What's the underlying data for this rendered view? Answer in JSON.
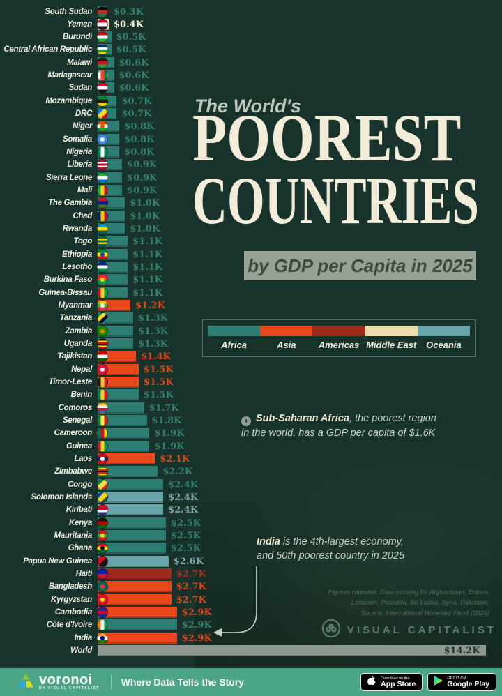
{
  "title": {
    "kicker": "The World's",
    "line1": "POOREST",
    "line2": "COUNTRIES",
    "subtitle": "by GDP per Capita in 2025"
  },
  "note": {
    "bold": "Sub-Saharan Africa",
    "rest": ", the poorest region\nin the world, has a GDP per capita of $1.6K"
  },
  "annotation": {
    "bold": "India",
    "rest": " is the 4th-largest economy,\nand 50th poorest country in 2025"
  },
  "fineprint": [
    "Figures rounded. Data missing for Afghanistan, Eritrea,",
    "Lebanon, Pakistan, Sri Lanka, Syria, Palestine.",
    "Source: International Monetary Fund (2025)"
  ],
  "brand": {
    "name": "VISUAL CAPITALIST"
  },
  "footer": {
    "logo": "voronoi",
    "by": "BY VISUAL CAPITALIST",
    "tagline": "Where Data Tells the Story",
    "badges": [
      {
        "top": "Download on the",
        "bottom": "App Store"
      },
      {
        "top": "GET IT ON",
        "bottom": "Google Play"
      }
    ]
  },
  "icons": {
    "note": "info-icon",
    "brand": "binoculars-icon",
    "badge_1": "apple-icon",
    "badge_2": "google-play-icon"
  },
  "colors": {
    "background": "#17332b",
    "footer_accent": "#4ba585",
    "title_cream": "#f2ecd9",
    "subtitle_bg": "#97a194",
    "regions": {
      "africa": "#2e7d72",
      "asia": "#e8481c",
      "americas": "#9e2a1e",
      "middle_east": "#ecdcaa",
      "oceania": "#68a6ac",
      "world": "#8e988e"
    },
    "value_text": {
      "africa": "#35806f",
      "asia": "#dd4518",
      "americas": "#a72f20",
      "middle_east": "#f3ead0",
      "oceania": "#7fabaf",
      "world": "#243831"
    }
  },
  "chart_data": {
    "type": "bar",
    "orientation": "horizontal",
    "title": "The World's Poorest Countries",
    "subtitle": "by GDP per Capita in 2025",
    "unit": "GDP per capita, USD thousands",
    "source": "International Monetary Fund (2025)",
    "xlim": [
      0,
      14.2
    ],
    "legend": [
      {
        "label": "Africa",
        "region": "africa"
      },
      {
        "label": "Asia",
        "region": "asia"
      },
      {
        "label": "Americas",
        "region": "americas"
      },
      {
        "label": "Middle East",
        "region": "middle_east"
      },
      {
        "label": "Oceania",
        "region": "oceania"
      }
    ],
    "series": [
      {
        "country": "South Sudan",
        "value": 0.3,
        "label": "$0.3K",
        "region": "africa",
        "flag": {
          "dir": "h",
          "colors": [
            "#0a0a0a",
            "#cd2027",
            "#17813a"
          ]
        }
      },
      {
        "country": "Yemen",
        "value": 0.4,
        "label": "$0.4K",
        "region": "middle_east",
        "flag": {
          "dir": "h",
          "colors": [
            "#ce1126",
            "#f5f5f5",
            "#1a1a1a"
          ]
        }
      },
      {
        "country": "Burundi",
        "value": 0.5,
        "label": "$0.5K",
        "region": "africa",
        "flag": {
          "dir": "h",
          "colors": [
            "#ce1126",
            "#f5f5f5",
            "#1eb53a"
          ]
        }
      },
      {
        "country": "Central African Republic",
        "value": 0.5,
        "label": "$0.5K",
        "region": "africa",
        "flag": {
          "dir": "h",
          "colors": [
            "#003082",
            "#f5f5f5",
            "#289728",
            "#ffce00"
          ]
        }
      },
      {
        "country": "Malawi",
        "value": 0.6,
        "label": "$0.6K",
        "region": "africa",
        "flag": {
          "dir": "h",
          "colors": [
            "#1a1a1a",
            "#ce1126",
            "#339e35"
          ]
        }
      },
      {
        "country": "Madagascar",
        "value": 0.6,
        "label": "$0.6K",
        "region": "africa",
        "flag": {
          "dir": "v",
          "colors": [
            "#f5f5f5",
            "#fc3d32",
            "#007e3a"
          ]
        }
      },
      {
        "country": "Sudan",
        "value": 0.6,
        "label": "$0.6K",
        "region": "africa",
        "flag": {
          "dir": "h",
          "colors": [
            "#d21034",
            "#f5f5f5",
            "#1a1a1a"
          ]
        }
      },
      {
        "country": "Mozambique",
        "value": 0.7,
        "label": "$0.7K",
        "region": "africa",
        "flag": {
          "dir": "h",
          "colors": [
            "#009739",
            "#1a1a1a",
            "#ffd100"
          ]
        }
      },
      {
        "country": "DRC",
        "value": 0.7,
        "label": "$0.7K",
        "region": "africa",
        "flag": {
          "dir": "d",
          "colors": [
            "#007fff",
            "#f7d618",
            "#ce1021"
          ]
        }
      },
      {
        "country": "Niger",
        "value": 0.8,
        "label": "$0.8K",
        "region": "africa",
        "flag": {
          "dir": "h",
          "colors": [
            "#e05206",
            "#f5f5f5",
            "#0db02b"
          ],
          "dot": "#e05206"
        }
      },
      {
        "country": "Somalia",
        "value": 0.8,
        "label": "$0.8K",
        "region": "africa",
        "flag": {
          "dir": "s",
          "colors": [
            "#4189dd"
          ],
          "dot": "#ffffff"
        }
      },
      {
        "country": "Nigeria",
        "value": 0.8,
        "label": "$0.8K",
        "region": "africa",
        "flag": {
          "dir": "v",
          "colors": [
            "#008751",
            "#f5f5f5",
            "#008751"
          ]
        }
      },
      {
        "country": "Liberia",
        "value": 0.9,
        "label": "$0.9K",
        "region": "africa",
        "flag": {
          "dir": "h",
          "colors": [
            "#bf0a30",
            "#f5f5f5",
            "#bf0a30",
            "#f5f5f5",
            "#bf0a30"
          ]
        }
      },
      {
        "country": "Sierra Leone",
        "value": 0.9,
        "label": "$0.9K",
        "region": "africa",
        "flag": {
          "dir": "h",
          "colors": [
            "#1eb53a",
            "#f5f5f5",
            "#0072c6"
          ]
        }
      },
      {
        "country": "Mali",
        "value": 0.9,
        "label": "$0.9K",
        "region": "africa",
        "flag": {
          "dir": "v",
          "colors": [
            "#14b53a",
            "#fcd116",
            "#ce1126"
          ]
        }
      },
      {
        "country": "The Gambia",
        "value": 1.0,
        "label": "$1.0K",
        "region": "africa",
        "flag": {
          "dir": "h",
          "colors": [
            "#ce1126",
            "#0c1c8c",
            "#3a7728"
          ]
        }
      },
      {
        "country": "Chad",
        "value": 1.0,
        "label": "$1.0K",
        "region": "africa",
        "flag": {
          "dir": "v",
          "colors": [
            "#002664",
            "#fecb00",
            "#c60c30"
          ]
        }
      },
      {
        "country": "Rwanda",
        "value": 1.0,
        "label": "$1.0K",
        "region": "africa",
        "flag": {
          "dir": "h",
          "colors": [
            "#00a1de",
            "#fad201",
            "#20603d"
          ]
        }
      },
      {
        "country": "Togo",
        "value": 1.1,
        "label": "$1.1K",
        "region": "africa",
        "flag": {
          "dir": "h",
          "colors": [
            "#006a4e",
            "#ffce00",
            "#006a4e",
            "#ffce00",
            "#006a4e"
          ]
        }
      },
      {
        "country": "Ethiopia",
        "value": 1.1,
        "label": "$1.1K",
        "region": "africa",
        "flag": {
          "dir": "h",
          "colors": [
            "#078930",
            "#fcdd09",
            "#da121a"
          ],
          "dot": "#0f47af"
        }
      },
      {
        "country": "Lesotho",
        "value": 1.1,
        "label": "$1.1K",
        "region": "africa",
        "flag": {
          "dir": "h",
          "colors": [
            "#00209f",
            "#f5f5f5",
            "#009543"
          ]
        }
      },
      {
        "country": "Burkina Faso",
        "value": 1.1,
        "label": "$1.1K",
        "region": "africa",
        "flag": {
          "dir": "h",
          "colors": [
            "#ef2b2d",
            "#009e49"
          ],
          "dot": "#fcd116"
        }
      },
      {
        "country": "Guinea-Bissau",
        "value": 1.1,
        "label": "$1.1K",
        "region": "africa",
        "flag": {
          "dir": "v",
          "colors": [
            "#ce1126",
            "#fcd116",
            "#009e49"
          ]
        }
      },
      {
        "country": "Myanmar",
        "value": 1.2,
        "label": "$1.2K",
        "region": "asia",
        "flag": {
          "dir": "h",
          "colors": [
            "#fecb00",
            "#34b233",
            "#ea2839"
          ],
          "dot": "#ffffff"
        }
      },
      {
        "country": "Tanzania",
        "value": 1.3,
        "label": "$1.3K",
        "region": "africa",
        "flag": {
          "dir": "d",
          "colors": [
            "#1eb53a",
            "#fcd116",
            "#141414",
            "#00a3dd"
          ]
        }
      },
      {
        "country": "Zambia",
        "value": 1.3,
        "label": "$1.3K",
        "region": "africa",
        "flag": {
          "dir": "s",
          "colors": [
            "#198a00"
          ],
          "dot": "#ef7d00"
        }
      },
      {
        "country": "Uganda",
        "value": 1.3,
        "label": "$1.3K",
        "region": "africa",
        "flag": {
          "dir": "h",
          "colors": [
            "#1a1a1a",
            "#fcdc04",
            "#d90000",
            "#1a1a1a",
            "#fcdc04",
            "#d90000"
          ]
        }
      },
      {
        "country": "Tajikistan",
        "value": 1.4,
        "label": "$1.4K",
        "region": "asia",
        "flag": {
          "dir": "h",
          "colors": [
            "#cc0000",
            "#f5f5f5",
            "#006600"
          ]
        }
      },
      {
        "country": "Nepal",
        "value": 1.5,
        "label": "$1.5K",
        "region": "asia",
        "flag": {
          "dir": "s",
          "colors": [
            "#dc143c"
          ],
          "dot": "#f5f5f5"
        }
      },
      {
        "country": "Timor-Leste",
        "value": 1.5,
        "label": "$1.5K",
        "region": "asia",
        "flag": {
          "dir": "v",
          "colors": [
            "#1a1a1a",
            "#ffc726",
            "#dc241f"
          ]
        }
      },
      {
        "country": "Benin",
        "value": 1.5,
        "label": "$1.5K",
        "region": "africa",
        "flag": {
          "dir": "v",
          "colors": [
            "#008751",
            "#fcd116",
            "#e8112d"
          ]
        }
      },
      {
        "country": "Comoros",
        "value": 1.7,
        "label": "$1.7K",
        "region": "africa",
        "flag": {
          "dir": "h",
          "colors": [
            "#ffc61e",
            "#f5f5f5",
            "#ce1126",
            "#3a75c4"
          ]
        }
      },
      {
        "country": "Senegal",
        "value": 1.8,
        "label": "$1.8K",
        "region": "africa",
        "flag": {
          "dir": "v",
          "colors": [
            "#00853f",
            "#fdef42",
            "#e31b23"
          ]
        }
      },
      {
        "country": "Cameroon",
        "value": 1.9,
        "label": "$1.9K",
        "region": "africa",
        "flag": {
          "dir": "v",
          "colors": [
            "#007a5e",
            "#ce1126",
            "#fcd116"
          ]
        }
      },
      {
        "country": "Guinea",
        "value": 1.9,
        "label": "$1.9K",
        "region": "africa",
        "flag": {
          "dir": "v",
          "colors": [
            "#ce1126",
            "#fcd116",
            "#009460"
          ]
        }
      },
      {
        "country": "Laos",
        "value": 2.1,
        "label": "$2.1K",
        "region": "asia",
        "flag": {
          "dir": "h",
          "colors": [
            "#ce1126",
            "#002868",
            "#ce1126"
          ],
          "dot": "#f5f5f5"
        }
      },
      {
        "country": "Zimbabwe",
        "value": 2.2,
        "label": "$2.2K",
        "region": "africa",
        "flag": {
          "dir": "h",
          "colors": [
            "#319208",
            "#ffd200",
            "#de2010",
            "#141414",
            "#de2010",
            "#ffd200",
            "#319208"
          ]
        }
      },
      {
        "country": "Congo",
        "value": 2.4,
        "label": "$2.4K",
        "region": "africa",
        "flag": {
          "dir": "d",
          "colors": [
            "#009543",
            "#fbde4a",
            "#dc241f"
          ]
        }
      },
      {
        "country": "Solomon Islands",
        "value": 2.4,
        "label": "$2.4K",
        "region": "oceania",
        "flag": {
          "dir": "d",
          "colors": [
            "#0051ba",
            "#fcd116",
            "#215b33"
          ]
        }
      },
      {
        "country": "Kiribati",
        "value": 2.4,
        "label": "$2.4K",
        "region": "oceania",
        "flag": {
          "dir": "h",
          "colors": [
            "#ce1126",
            "#ce1126",
            "#f5f5f5",
            "#003f87"
          ]
        }
      },
      {
        "country": "Kenya",
        "value": 2.5,
        "label": "$2.5K",
        "region": "africa",
        "flag": {
          "dir": "h",
          "colors": [
            "#141414",
            "#bb0000",
            "#006600"
          ]
        }
      },
      {
        "country": "Mauritania",
        "value": 2.5,
        "label": "$2.5K",
        "region": "africa",
        "flag": {
          "dir": "h",
          "colors": [
            "#d01c1f",
            "#00a95c",
            "#d01c1f"
          ],
          "dot": "#ffd700"
        }
      },
      {
        "country": "Ghana",
        "value": 2.5,
        "label": "$2.5K",
        "region": "africa",
        "flag": {
          "dir": "h",
          "colors": [
            "#ce1126",
            "#fcd116",
            "#006b3f"
          ],
          "dot": "#141414"
        }
      },
      {
        "country": "Papua New Guinea",
        "value": 2.6,
        "label": "$2.6K",
        "region": "oceania",
        "flag": {
          "dir": "d",
          "colors": [
            "#ce1126",
            "#141414"
          ]
        }
      },
      {
        "country": "Haiti",
        "value": 2.7,
        "label": "$2.7K",
        "region": "americas",
        "flag": {
          "dir": "h",
          "colors": [
            "#00209f",
            "#d21034"
          ]
        }
      },
      {
        "country": "Bangladesh",
        "value": 2.7,
        "label": "$2.7K",
        "region": "asia",
        "flag": {
          "dir": "s",
          "colors": [
            "#006a4e"
          ],
          "dot": "#f42a41"
        }
      },
      {
        "country": "Kyrgyzstan",
        "value": 2.7,
        "label": "$2.7K",
        "region": "asia",
        "flag": {
          "dir": "s",
          "colors": [
            "#e8112d"
          ],
          "dot": "#ffef00"
        }
      },
      {
        "country": "Cambodia",
        "value": 2.9,
        "label": "$2.9K",
        "region": "asia",
        "flag": {
          "dir": "h",
          "colors": [
            "#032ea1",
            "#e00025",
            "#032ea1"
          ]
        }
      },
      {
        "country": "Côte d'Ivoire",
        "value": 2.9,
        "label": "$2.9K",
        "region": "africa",
        "flag": {
          "dir": "v",
          "colors": [
            "#f77f00",
            "#f5f5f5",
            "#009e60"
          ]
        }
      },
      {
        "country": "India",
        "value": 2.9,
        "label": "$2.9K",
        "region": "asia",
        "flag": {
          "dir": "h",
          "colors": [
            "#ff9933",
            "#f5f5f5",
            "#138808"
          ],
          "dot": "#000080"
        }
      },
      {
        "country": "World",
        "value": 14.2,
        "label": "$14.2K",
        "region": "world",
        "flag": null
      }
    ]
  }
}
